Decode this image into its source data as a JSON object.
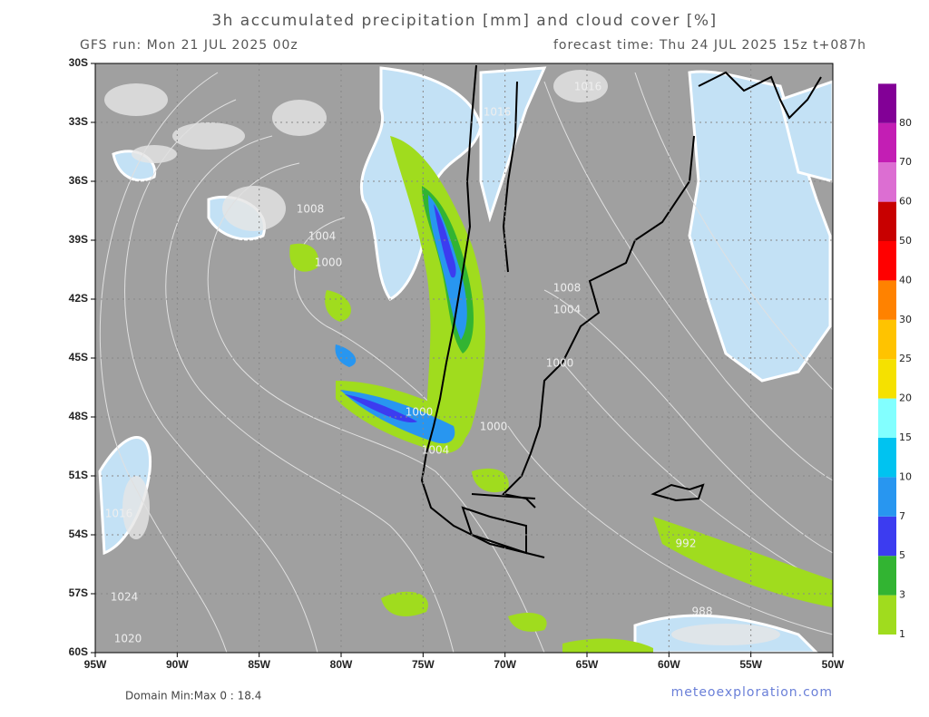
{
  "header": {
    "title": "3h accumulated precipitation [mm] and cloud cover [%]",
    "run": "GFS run: Mon 21 JUL 2025 00z",
    "forecast": "forecast time: Thu 24 JUL 2025 15z  t+087h"
  },
  "map": {
    "lat_ticks": [
      {
        "value": -30,
        "label": "30S"
      },
      {
        "value": -33,
        "label": "33S"
      },
      {
        "value": -36,
        "label": "36S"
      },
      {
        "value": -39,
        "label": "39S"
      },
      {
        "value": -42,
        "label": "42S"
      },
      {
        "value": -45,
        "label": "45S"
      },
      {
        "value": -48,
        "label": "48S"
      },
      {
        "value": -51,
        "label": "51S"
      },
      {
        "value": -54,
        "label": "54S"
      },
      {
        "value": -57,
        "label": "57S"
      },
      {
        "value": -60,
        "label": "60S"
      }
    ],
    "lon_ticks": [
      {
        "value": -95,
        "label": "95W"
      },
      {
        "value": -90,
        "label": "90W"
      },
      {
        "value": -85,
        "label": "85W"
      },
      {
        "value": -80,
        "label": "80W"
      },
      {
        "value": -75,
        "label": "75W"
      },
      {
        "value": -70,
        "label": "70W"
      },
      {
        "value": -65,
        "label": "65W"
      },
      {
        "value": -60,
        "label": "60W"
      },
      {
        "value": -55,
        "label": "55W"
      },
      {
        "value": -50,
        "label": "50W"
      }
    ],
    "isobar_labels": [
      "1016",
      "1016",
      "1008",
      "1004",
      "1000",
      "1008",
      "1004",
      "1000",
      "1000",
      "1000",
      "1004",
      "1016",
      "1024",
      "1020",
      "992",
      "988"
    ]
  },
  "colorbar": {
    "levels": [
      1,
      3,
      5,
      7,
      10,
      15,
      20,
      25,
      30,
      40,
      50,
      60,
      70,
      80
    ],
    "colors": [
      "#a0dc1e",
      "#32b432",
      "#3c3cf0",
      "#2896f0",
      "#00c3f0",
      "#82ffff",
      "#f5e100",
      "#ffc300",
      "#ff8200",
      "#ff0000",
      "#c80000",
      "#dc6ed2",
      "#c31eb4",
      "#820096"
    ]
  },
  "footer": {
    "minmax": "Domain Min:Max 0 : 18.4",
    "site": "meteoexploration.com"
  }
}
